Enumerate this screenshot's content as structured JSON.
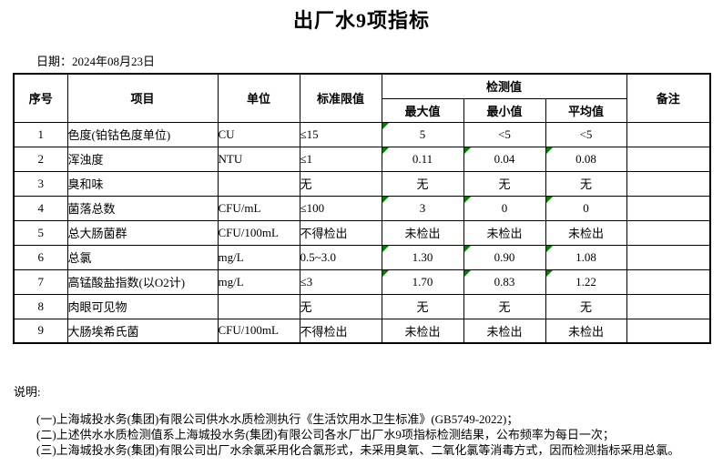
{
  "title": "出厂水9项指标",
  "date_line": "日期：2024年08月23日",
  "table": {
    "headers": {
      "no": "序号",
      "item": "项目",
      "unit": "单位",
      "limit": "标准限值",
      "detection": "检测值",
      "max": "最大值",
      "min": "最小值",
      "avg": "平均值",
      "remark": "备注"
    },
    "rows": [
      {
        "no": "1",
        "item": "色度(铂钴色度单位)",
        "unit": "CU",
        "limit": "≤15",
        "max": "5",
        "min": "<5",
        "avg": "<5",
        "remark": "",
        "flags": [
          true,
          false,
          false
        ]
      },
      {
        "no": "2",
        "item": "浑浊度",
        "unit": "NTU",
        "limit": "≤1",
        "max": "0.11",
        "min": "0.04",
        "avg": "0.08",
        "remark": "",
        "flags": [
          true,
          true,
          true
        ]
      },
      {
        "no": "3",
        "item": "臭和味",
        "unit": "",
        "limit": "无",
        "max": "无",
        "min": "无",
        "avg": "无",
        "remark": "",
        "flags": [
          false,
          false,
          false
        ]
      },
      {
        "no": "4",
        "item": "菌落总数",
        "unit": "CFU/mL",
        "limit": "≤100",
        "max": "3",
        "min": "0",
        "avg": "0",
        "remark": "",
        "flags": [
          true,
          true,
          true
        ]
      },
      {
        "no": "5",
        "item": "总大肠菌群",
        "unit": "CFU/100mL",
        "limit": "不得检出",
        "max": "未检出",
        "min": "未检出",
        "avg": "未检出",
        "remark": "",
        "flags": [
          false,
          false,
          false
        ]
      },
      {
        "no": "6",
        "item": "总氯",
        "unit": "mg/L",
        "limit": "0.5~3.0",
        "max": "1.30",
        "min": "0.90",
        "avg": "1.08",
        "remark": "",
        "flags": [
          true,
          true,
          true
        ]
      },
      {
        "no": "7",
        "item": "高锰酸盐指数(以O2计)",
        "unit": "mg/L",
        "limit": "≤3",
        "max": "1.70",
        "min": "0.83",
        "avg": "1.22",
        "remark": "",
        "flags": [
          true,
          true,
          true
        ]
      },
      {
        "no": "8",
        "item": "肉眼可见物",
        "unit": "",
        "limit": "无",
        "max": "无",
        "min": "无",
        "avg": "无",
        "remark": "",
        "flags": [
          false,
          false,
          false
        ]
      },
      {
        "no": "9",
        "item": "大肠埃希氏菌",
        "unit": "CFU/100mL",
        "limit": "不得检出",
        "max": "未检出",
        "min": "未检出",
        "avg": "未检出",
        "remark": "",
        "flags": [
          false,
          false,
          false
        ]
      }
    ]
  },
  "notes": {
    "label": "说明:",
    "items": [
      "(一)上海城投水务(集团)有限公司供水水质检测执行《生活饮用水卫生标准》(GB5749-2022)；",
      "(二)上述供水水质检测值系上海城投水务(集团)有限公司各水厂出厂水9项指标检测结果，公布频率为每日一次；",
      "(三)上海城投水务(集团)有限公司出厂水余氯采用化合氯形式，未采用臭氧、二氧化氯等消毒方式，因而检测指标采用总氯。"
    ]
  },
  "colors": {
    "marker_green": "#008000",
    "border": "#000000"
  }
}
